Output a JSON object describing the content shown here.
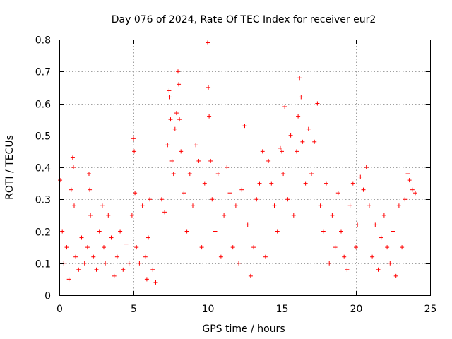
{
  "chart_data": {
    "type": "scatter",
    "title": "Day 076 of 2024, Rate Of TEC Index for receiver eur2",
    "xlabel": "GPS time / hours",
    "ylabel": "ROTI / TECUs",
    "xlim": [
      0,
      25
    ],
    "ylim": [
      0,
      0.8
    ],
    "x_ticks": [
      "0",
      "5",
      "10",
      "15",
      "20",
      "25"
    ],
    "y_ticks": [
      "0",
      "0.1",
      "0.2",
      "0.3",
      "0.4",
      "0.5",
      "0.6",
      "0.7",
      "0.8"
    ],
    "grid": true,
    "marker": "plus",
    "marker_color": "#ff0000",
    "series": [
      {
        "x": [
          0.05,
          0.2,
          0.3,
          0.5,
          0.65,
          0.8,
          0.9,
          0.95,
          1.0,
          1.1,
          1.3,
          1.5,
          1.7,
          1.9,
          2.0,
          2.05,
          2.1,
          2.3,
          2.5,
          2.7,
          2.9,
          3.0,
          3.1,
          3.3,
          3.5,
          3.7,
          3.9,
          4.1,
          4.3,
          4.5,
          4.7,
          4.9,
          5.0,
          5.05,
          5.1,
          5.2,
          5.4,
          5.6,
          5.8,
          5.9,
          6.0,
          6.1,
          6.3,
          6.5,
          6.9,
          7.1,
          7.3,
          7.4,
          7.45,
          7.5,
          7.6,
          7.7,
          7.8,
          7.9,
          8.0,
          8.05,
          8.1,
          8.2,
          8.4,
          8.6,
          8.8,
          9.0,
          9.2,
          9.4,
          9.6,
          9.8,
          10.0,
          10.05,
          10.1,
          10.2,
          10.3,
          10.5,
          10.7,
          10.9,
          11.1,
          11.3,
          11.5,
          11.7,
          11.9,
          12.1,
          12.3,
          12.5,
          12.7,
          12.9,
          13.1,
          13.3,
          13.5,
          13.7,
          13.9,
          14.1,
          14.3,
          14.5,
          14.7,
          14.9,
          15.0,
          15.1,
          15.2,
          15.4,
          15.6,
          15.8,
          16.0,
          16.1,
          16.2,
          16.3,
          16.4,
          16.6,
          16.8,
          17.0,
          17.2,
          17.4,
          17.6,
          17.8,
          18.0,
          18.2,
          18.4,
          18.6,
          18.8,
          19.0,
          19.2,
          19.4,
          19.6,
          19.8,
          20.0,
          20.1,
          20.3,
          20.5,
          20.7,
          20.9,
          21.1,
          21.3,
          21.5,
          21.7,
          21.9,
          22.1,
          22.3,
          22.5,
          22.7,
          22.9,
          23.1,
          23.3,
          23.5,
          23.6,
          23.8,
          24.0
        ],
        "y": [
          0.36,
          0.2,
          0.1,
          0.15,
          0.05,
          0.33,
          0.43,
          0.4,
          0.28,
          0.12,
          0.08,
          0.18,
          0.1,
          0.15,
          0.38,
          0.33,
          0.25,
          0.12,
          0.08,
          0.2,
          0.28,
          0.15,
          0.1,
          0.25,
          0.18,
          0.06,
          0.12,
          0.2,
          0.08,
          0.16,
          0.1,
          0.25,
          0.49,
          0.45,
          0.32,
          0.15,
          0.1,
          0.28,
          0.12,
          0.05,
          0.18,
          0.3,
          0.08,
          0.04,
          0.3,
          0.26,
          0.47,
          0.64,
          0.62,
          0.55,
          0.42,
          0.38,
          0.52,
          0.57,
          0.7,
          0.66,
          0.55,
          0.45,
          0.32,
          0.2,
          0.38,
          0.28,
          0.47,
          0.42,
          0.15,
          0.35,
          0.79,
          0.65,
          0.56,
          0.42,
          0.3,
          0.2,
          0.38,
          0.12,
          0.25,
          0.4,
          0.32,
          0.15,
          0.28,
          0.1,
          0.33,
          0.53,
          0.22,
          0.06,
          0.15,
          0.3,
          0.35,
          0.45,
          0.12,
          0.42,
          0.35,
          0.28,
          0.2,
          0.46,
          0.45,
          0.38,
          0.59,
          0.3,
          0.5,
          0.25,
          0.45,
          0.56,
          0.68,
          0.62,
          0.48,
          0.35,
          0.52,
          0.38,
          0.48,
          0.6,
          0.28,
          0.2,
          0.35,
          0.1,
          0.25,
          0.15,
          0.32,
          0.2,
          0.12,
          0.08,
          0.28,
          0.35,
          0.15,
          0.22,
          0.37,
          0.33,
          0.4,
          0.28,
          0.12,
          0.22,
          0.08,
          0.18,
          0.25,
          0.15,
          0.1,
          0.2,
          0.06,
          0.28,
          0.15,
          0.3,
          0.38,
          0.36,
          0.33,
          0.32
        ]
      }
    ]
  }
}
